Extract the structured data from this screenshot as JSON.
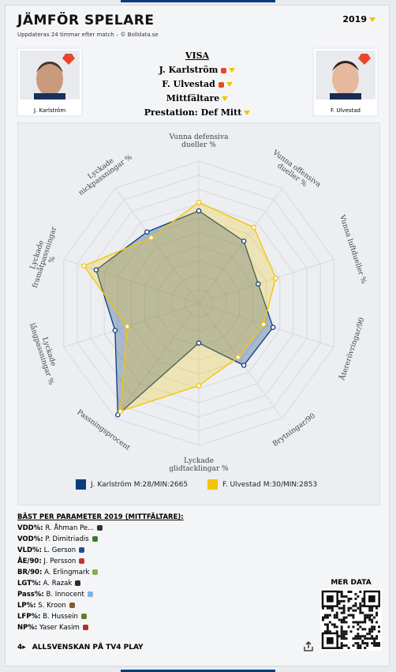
{
  "header": {
    "title": "JÄMFÖR SPELARE",
    "subtitle": "Uppdateras 24 timmar efter match – © Bolldata.se",
    "year": "2019"
  },
  "players": [
    {
      "name": "J. Karlström"
    },
    {
      "name": "F. Ulvestad"
    }
  ],
  "selector": {
    "heading": "VISA",
    "player_1": "J. Karlström",
    "player_2": "F. Ulvestad",
    "position": "Mittfältare",
    "profile": "Prestation: Def Mitt"
  },
  "chart_data": {
    "type": "radar",
    "categories": [
      "Vunna defensiva dueller %",
      "Vunna offensiva dueller %",
      "Vunna luftdueller %",
      "Återerövringar/90",
      "Brytningar/90",
      "Lyckade glidtacklingar %",
      "Passningsprocent",
      "Lyckade långpassningar %",
      "Lyckade framåtpassningar %",
      "Lyckade nickpassningar %"
    ],
    "rlim": [
      0,
      100
    ],
    "series": [
      {
        "name": "J. Karlström M:28/MIN:2665",
        "color": "#0b3b7c",
        "values": [
          65,
          54,
          44,
          55,
          54,
          28,
          97,
          62,
          76,
          62
        ]
      },
      {
        "name": "F. Ulvestad M:30/MIN:2853",
        "color": "#f5c400",
        "values": [
          71,
          66,
          57,
          48,
          47,
          58,
          94,
          53,
          85,
          57
        ]
      }
    ]
  },
  "best": {
    "title": "BÄST PER PARAMETER 2019 (MITTFÄLTARE):",
    "rows": [
      {
        "key": "VDD%:",
        "value": "R. Åhman Pe..."
      },
      {
        "key": "VOD%:",
        "value": "P. Dimitriadis"
      },
      {
        "key": "VLD%:",
        "value": "L. Gerson"
      },
      {
        "key": "ÅE/90:",
        "value": "J. Persson"
      },
      {
        "key": "BR/90:",
        "value": "A. Erlingmark"
      },
      {
        "key": "LGT%:",
        "value": "A. Razak"
      },
      {
        "key": "Pass%:",
        "value": "B. Innocent"
      },
      {
        "key": "LP%:",
        "value": "S. Kroon"
      },
      {
        "key": "LFP%:",
        "value": "B. Hussein"
      },
      {
        "key": "NP%:",
        "value": "Yaser Kasim"
      }
    ]
  },
  "qr": {
    "title": "MER DATA"
  },
  "footer": {
    "text": "ALLSVENSKAN PÅ TV4 PLAY"
  }
}
